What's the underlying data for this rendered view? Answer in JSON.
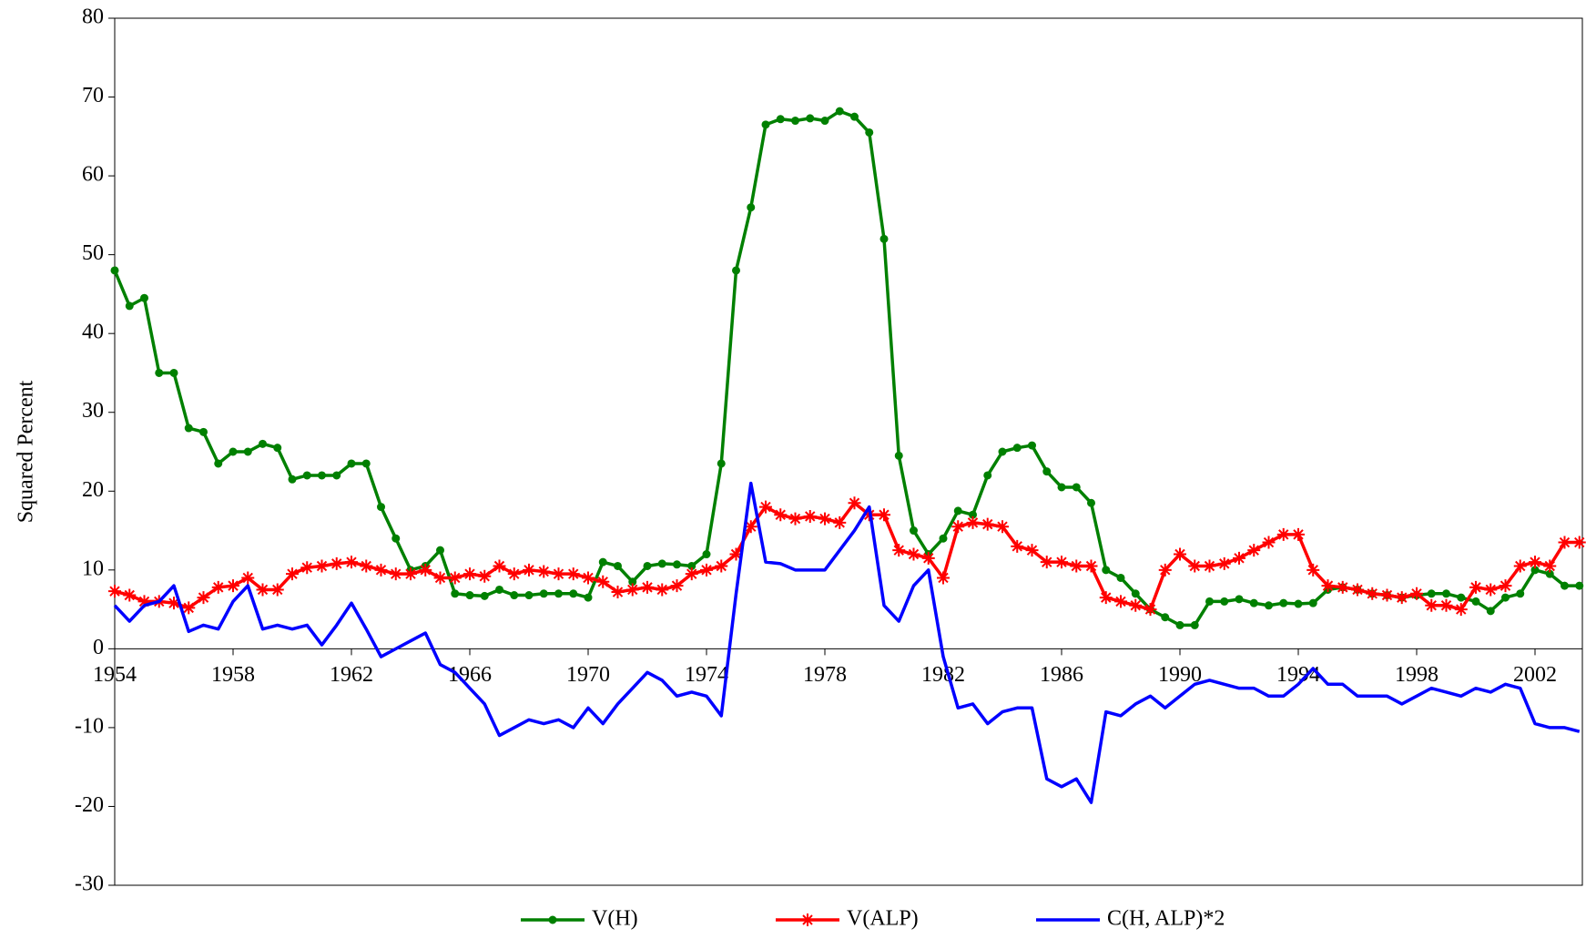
{
  "chart_data": {
    "type": "line",
    "y_label": "Squared Percent",
    "x": [
      1954,
      1954.5,
      1955,
      1955.5,
      1956,
      1956.5,
      1957,
      1957.5,
      1958,
      1958.5,
      1959,
      1959.5,
      1960,
      1960.5,
      1961,
      1961.5,
      1962,
      1962.5,
      1963,
      1963.5,
      1964,
      1964.5,
      1965,
      1965.5,
      1966,
      1966.5,
      1967,
      1967.5,
      1968,
      1968.5,
      1969,
      1969.5,
      1970,
      1970.5,
      1971,
      1971.5,
      1972,
      1972.5,
      1973,
      1973.5,
      1974,
      1974.5,
      1975,
      1975.5,
      1976,
      1976.5,
      1977,
      1977.5,
      1978,
      1978.5,
      1979,
      1979.5,
      1980,
      1980.5,
      1981,
      1981.5,
      1982,
      1982.5,
      1983,
      1983.5,
      1984,
      1984.5,
      1985,
      1985.5,
      1986,
      1986.5,
      1987,
      1987.5,
      1988,
      1988.5,
      1989,
      1989.5,
      1990,
      1990.5,
      1991,
      1991.5,
      1992,
      1992.5,
      1993,
      1993.5,
      1994,
      1994.5,
      1995,
      1995.5,
      1996,
      1996.5,
      1997,
      1997.5,
      1998,
      1998.5,
      1999,
      1999.5,
      2000,
      2000.5,
      2001,
      2001.5,
      2002,
      2002.5,
      2003,
      2003.5
    ],
    "series": [
      {
        "name": "V(H)",
        "color": "#008000",
        "marker": "circle",
        "values": [
          48,
          43.5,
          44.5,
          35,
          35,
          28,
          27.5,
          23.5,
          25,
          25,
          26,
          25.5,
          21.5,
          22,
          22,
          22,
          23.5,
          23.5,
          18,
          14,
          10,
          10.5,
          12.5,
          7,
          6.8,
          6.7,
          7.5,
          6.8,
          6.8,
          7,
          7,
          7,
          6.5,
          11,
          10.5,
          8.5,
          10.5,
          10.8,
          10.7,
          10.5,
          12,
          23.5,
          48,
          56,
          66.5,
          67.2,
          67,
          67.3,
          67,
          68.2,
          67.5,
          65.5,
          52,
          24.5,
          15,
          12,
          14,
          17.5,
          17,
          22,
          25,
          25.5,
          25.8,
          22.5,
          20.5,
          20.5,
          18.5,
          10,
          9,
          7,
          5,
          4,
          3,
          3,
          6,
          6,
          6.3,
          5.8,
          5.5,
          5.8,
          5.7,
          5.8,
          7.5,
          7.8,
          7.5,
          7,
          6.8,
          6.5,
          6.8,
          7,
          7,
          6.5,
          6,
          4.8,
          6.5,
          7,
          10,
          9.5,
          8,
          8
        ]
      },
      {
        "name": "V(ALP)",
        "color": "#ff0000",
        "marker": "star",
        "values": [
          7.3,
          6.8,
          6,
          6,
          5.8,
          5.2,
          6.5,
          7.8,
          8,
          9,
          7.5,
          7.5,
          9.5,
          10.3,
          10.5,
          10.8,
          11,
          10.5,
          10,
          9.5,
          9.5,
          10,
          9,
          9,
          9.5,
          9.2,
          10.5,
          9.5,
          10,
          9.8,
          9.5,
          9.5,
          9,
          8.5,
          7.2,
          7.5,
          7.8,
          7.5,
          8,
          9.5,
          10,
          10.5,
          12,
          15.5,
          18,
          17,
          16.5,
          16.8,
          16.5,
          16,
          18.5,
          17,
          17,
          12.5,
          12,
          11.5,
          9,
          15.5,
          16,
          15.8,
          15.5,
          13,
          12.5,
          11,
          11,
          10.5,
          10.5,
          6.5,
          6,
          5.5,
          5,
          10,
          12,
          10.5,
          10.5,
          10.8,
          11.5,
          12.5,
          13.5,
          14.5,
          14.5,
          10,
          8,
          7.8,
          7.5,
          7,
          6.8,
          6.5,
          7,
          5.5,
          5.5,
          5,
          7.8,
          7.5,
          8,
          10.5,
          11,
          10.5,
          13.5,
          13.5
        ]
      },
      {
        "name": "C(H, ALP)*2",
        "color": "#0000ff",
        "marker": "none",
        "values": [
          5.5,
          3.5,
          5.5,
          6,
          8,
          2.2,
          3,
          2.5,
          6,
          8,
          2.5,
          3,
          2.5,
          3,
          0.5,
          3,
          5.8,
          2.5,
          -1,
          0,
          1,
          2,
          -2,
          -3,
          -5,
          -7,
          -11,
          -10,
          -9,
          -9.5,
          -9,
          -10,
          -7.5,
          -9.5,
          -7,
          -5,
          -3,
          -4,
          -6,
          -5.5,
          -6,
          -8.5,
          7,
          21,
          11,
          10.8,
          10,
          10,
          10,
          12.5,
          15,
          18,
          5.5,
          3.5,
          8,
          10,
          -1,
          -7.5,
          -7,
          -9.5,
          -8,
          -7.5,
          -7.5,
          -16.5,
          -17.5,
          -16.5,
          -19.5,
          -8,
          -8.5,
          -7,
          -6,
          -7.5,
          -6,
          -4.5,
          -4,
          -4.5,
          -5,
          -5,
          -6,
          -6,
          -4.5,
          -2.5,
          -4.5,
          -4.5,
          -6,
          -6,
          -6,
          -7,
          -6,
          -5,
          -5.5,
          -6,
          -5,
          -5.5,
          -4.5,
          -5,
          -9.5,
          -10,
          -10,
          -10.5
        ]
      }
    ],
    "xlim": [
      1954,
      2003.6
    ],
    "xticks": [
      1954,
      1958,
      1962,
      1966,
      1970,
      1974,
      1978,
      1982,
      1986,
      1990,
      1994,
      1998,
      2002
    ],
    "ylim": [
      -30,
      80
    ],
    "yticks": [
      -30,
      -20,
      -10,
      0,
      10,
      20,
      30,
      40,
      50,
      60,
      70,
      80
    ],
    "legend": "bottom"
  }
}
